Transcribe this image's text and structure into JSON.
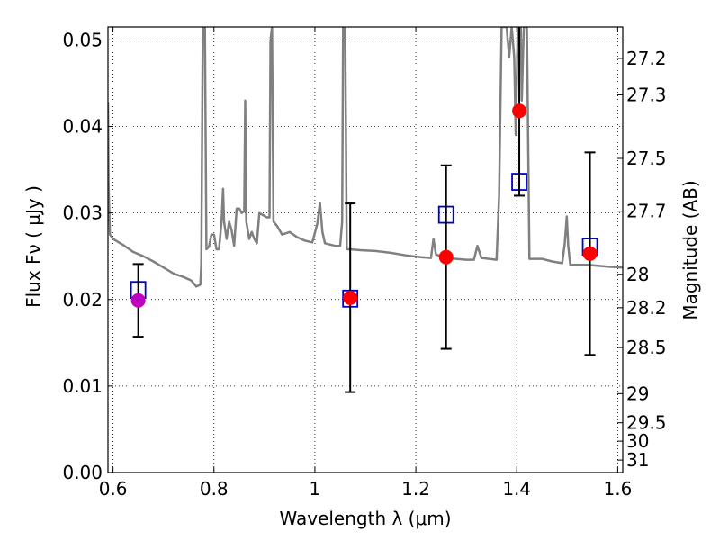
{
  "chart_data": {
    "type": "scatter",
    "xlabel": "Wavelength  λ (μm)",
    "ylabel": "Flux  Fν ( μJy )",
    "ylabel_right": "Magnitude (AB)",
    "xlim": [
      0.59,
      1.61
    ],
    "ylim": [
      0.0,
      0.0515
    ],
    "grid": true,
    "x_ticks": [
      "0.6",
      "0.8",
      "1",
      "1.2",
      "1.4",
      "1.6"
    ],
    "x_tick_values": [
      0.6,
      0.8,
      1.0,
      1.2,
      1.4,
      1.6
    ],
    "y_ticks": [
      "0.00",
      "0.01",
      "0.02",
      "0.03",
      "0.04",
      "0.05"
    ],
    "y_tick_values": [
      0.0,
      0.01,
      0.02,
      0.03,
      0.04,
      0.05
    ],
    "right_ticks": [
      "27.2",
      "27.3",
      "27.5",
      "27.7",
      "28",
      "28.2",
      "28.5",
      "29",
      "29.5",
      "30",
      "31"
    ],
    "right_tick_values": [
      27.2,
      27.3,
      27.5,
      27.7,
      28.0,
      28.2,
      28.5,
      29.0,
      29.5,
      30.0,
      31.0
    ],
    "colors": {
      "model": "#808080",
      "observed_red": "#ff0000",
      "observed_magenta": "#bf00bf",
      "synthetic": "#0000cc",
      "errorbar": "#000000"
    },
    "series": [
      {
        "points": [
          {
            "x": 0.65,
            "y": 0.0199,
            "yerr": 0.0042
          },
          {
            "x": 1.07,
            "y": 0.0202,
            "yerr": 0.0109
          },
          {
            "x": 1.26,
            "y": 0.0249,
            "yerr": 0.0106
          },
          {
            "x": 1.405,
            "y": 0.0418,
            "yerr": 0.0098
          },
          {
            "x": 1.545,
            "y": 0.0253,
            "yerr": 0.0117
          }
        ]
      },
      {
        "marker": "open-square",
        "points": [
          {
            "x": 0.65,
            "y": 0.0211
          },
          {
            "x": 1.07,
            "y": 0.0201
          },
          {
            "x": 1.26,
            "y": 0.0298
          },
          {
            "x": 1.405,
            "y": 0.0336
          },
          {
            "x": 1.545,
            "y": 0.0261
          }
        ]
      },
      {
        "line": [
          [
            0.59,
            0.0428
          ],
          [
            0.591,
            0.0335
          ],
          [
            0.594,
            0.0275
          ],
          [
            0.6,
            0.027
          ],
          [
            0.62,
            0.0263
          ],
          [
            0.64,
            0.0255
          ],
          [
            0.66,
            0.025
          ],
          [
            0.68,
            0.0244
          ],
          [
            0.7,
            0.0237
          ],
          [
            0.72,
            0.023
          ],
          [
            0.74,
            0.0226
          ],
          [
            0.755,
            0.0222
          ],
          [
            0.765,
            0.0215
          ],
          [
            0.773,
            0.0217
          ],
          [
            0.775,
            0.024
          ],
          [
            0.778,
            0.0515
          ],
          [
            0.782,
            0.0515
          ],
          [
            0.785,
            0.0258
          ],
          [
            0.79,
            0.0261
          ],
          [
            0.795,
            0.0275
          ],
          [
            0.8,
            0.0275
          ],
          [
            0.805,
            0.0258
          ],
          [
            0.81,
            0.0258
          ],
          [
            0.815,
            0.029
          ],
          [
            0.818,
            0.0328
          ],
          [
            0.82,
            0.029
          ],
          [
            0.825,
            0.027
          ],
          [
            0.83,
            0.029
          ],
          [
            0.835,
            0.028
          ],
          [
            0.84,
            0.0262
          ],
          [
            0.845,
            0.0305
          ],
          [
            0.85,
            0.0305
          ],
          [
            0.855,
            0.03
          ],
          [
            0.86,
            0.0302
          ],
          [
            0.862,
            0.043
          ],
          [
            0.864,
            0.029
          ],
          [
            0.87,
            0.027
          ],
          [
            0.875,
            0.0278
          ],
          [
            0.88,
            0.027
          ],
          [
            0.885,
            0.0265
          ],
          [
            0.89,
            0.03
          ],
          [
            0.905,
            0.0295
          ],
          [
            0.91,
            0.0295
          ],
          [
            0.912,
            0.05
          ],
          [
            0.915,
            0.0515
          ],
          [
            0.918,
            0.029
          ],
          [
            0.925,
            0.0285
          ],
          [
            0.935,
            0.0275
          ],
          [
            0.95,
            0.0278
          ],
          [
            0.965,
            0.0272
          ],
          [
            0.98,
            0.0268
          ],
          [
            0.995,
            0.0266
          ],
          [
            1.005,
            0.0288
          ],
          [
            1.01,
            0.0312
          ],
          [
            1.015,
            0.0278
          ],
          [
            1.02,
            0.0265
          ],
          [
            1.04,
            0.0262
          ],
          [
            1.05,
            0.0262
          ],
          [
            1.054,
            0.029
          ],
          [
            1.056,
            0.0515
          ],
          [
            1.06,
            0.0515
          ],
          [
            1.063,
            0.0258
          ],
          [
            1.07,
            0.0258
          ],
          [
            1.09,
            0.0257
          ],
          [
            1.12,
            0.0256
          ],
          [
            1.15,
            0.0254
          ],
          [
            1.18,
            0.0251
          ],
          [
            1.21,
            0.0249
          ],
          [
            1.23,
            0.0248
          ],
          [
            1.235,
            0.027
          ],
          [
            1.24,
            0.0252
          ],
          [
            1.26,
            0.0248
          ],
          [
            1.28,
            0.0247
          ],
          [
            1.3,
            0.0246
          ],
          [
            1.315,
            0.0246
          ],
          [
            1.322,
            0.0262
          ],
          [
            1.33,
            0.0248
          ],
          [
            1.345,
            0.0247
          ],
          [
            1.36,
            0.0246
          ],
          [
            1.365,
            0.032
          ],
          [
            1.37,
            0.0515
          ],
          [
            1.38,
            0.0515
          ],
          [
            1.385,
            0.048
          ],
          [
            1.39,
            0.0515
          ],
          [
            1.395,
            0.048
          ],
          [
            1.398,
            0.039
          ],
          [
            1.402,
            0.0515
          ],
          [
            1.408,
            0.0515
          ],
          [
            1.41,
            0.043
          ],
          [
            1.414,
            0.0515
          ],
          [
            1.42,
            0.0515
          ],
          [
            1.425,
            0.0247
          ],
          [
            1.45,
            0.0247
          ],
          [
            1.47,
            0.0244
          ],
          [
            1.49,
            0.0242
          ],
          [
            1.495,
            0.0264
          ],
          [
            1.499,
            0.0296
          ],
          [
            1.502,
            0.0262
          ],
          [
            1.506,
            0.024
          ],
          [
            1.52,
            0.024
          ],
          [
            1.54,
            0.024
          ],
          [
            1.56,
            0.0239
          ],
          [
            1.58,
            0.0238
          ],
          [
            1.61,
            0.0237
          ]
        ]
      }
    ]
  }
}
